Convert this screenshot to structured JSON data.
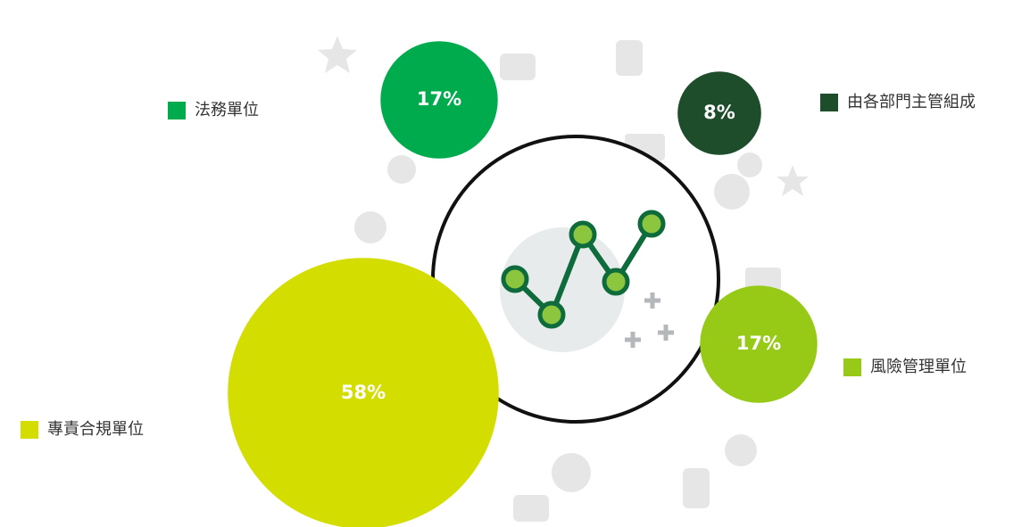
{
  "chart_data": {
    "type": "bubble",
    "categories": [
      "法務單位",
      "由各部門主管組成",
      "風險管理單位",
      "專責合規單位"
    ],
    "values": [
      17,
      8,
      17,
      58
    ],
    "value_labels": [
      "17%",
      "8%",
      "17%",
      "58%"
    ],
    "colors": [
      "#00ab4e",
      "#1e4d2b",
      "#97c917",
      "#d4dd00"
    ]
  }
}
